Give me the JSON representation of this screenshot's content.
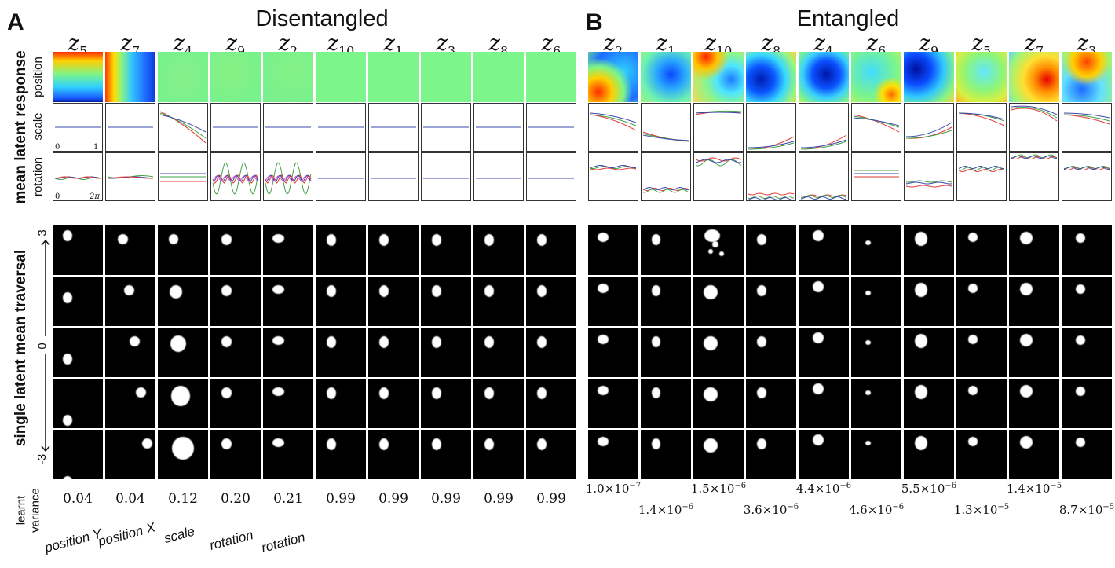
{
  "panels": {
    "A": {
      "letter": "A",
      "title": "Disentangled",
      "latents": [
        {
          "name": "z",
          "sub": "5"
        },
        {
          "name": "z",
          "sub": "7"
        },
        {
          "name": "z",
          "sub": "4"
        },
        {
          "name": "z",
          "sub": "9"
        },
        {
          "name": "z",
          "sub": "2"
        },
        {
          "name": "z",
          "sub": "10"
        },
        {
          "name": "z",
          "sub": "1"
        },
        {
          "name": "z",
          "sub": "3"
        },
        {
          "name": "z",
          "sub": "8"
        },
        {
          "name": "z",
          "sub": "6"
        }
      ],
      "variances": [
        "0.04",
        "0.04",
        "0.12",
        "0.20",
        "0.21",
        "0.99",
        "0.99",
        "0.99",
        "0.99",
        "0.99"
      ],
      "factors": [
        "position Y",
        "position X",
        "scale",
        "rotation",
        "rotation"
      ]
    },
    "B": {
      "letter": "B",
      "title": "Entangled",
      "latents": [
        {
          "name": "z",
          "sub": "2"
        },
        {
          "name": "z",
          "sub": "1"
        },
        {
          "name": "z",
          "sub": "10"
        },
        {
          "name": "z",
          "sub": "8"
        },
        {
          "name": "z",
          "sub": "4"
        },
        {
          "name": "z",
          "sub": "6"
        },
        {
          "name": "z",
          "sub": "9"
        },
        {
          "name": "z",
          "sub": "5"
        },
        {
          "name": "z",
          "sub": "7"
        },
        {
          "name": "z",
          "sub": "3"
        }
      ],
      "variances": [
        "1.0×10",
        "1.4×10",
        "1.5×10",
        "3.6×10",
        "4.4×10",
        "4.6×10",
        "5.5×10",
        "1.3×10",
        "1.4×10",
        "8.7×10"
      ],
      "variance_exps": [
        "−7",
        "−6",
        "−6",
        "−6",
        "−6",
        "−6",
        "−6",
        "−5",
        "−5",
        "−5"
      ]
    }
  },
  "row_labels": {
    "position": "position",
    "scale": "scale",
    "rotation": "rotation"
  },
  "side_labels": {
    "top": "mean latent response",
    "bottom": "single latent mean traversal"
  },
  "axis_ticks": {
    "scale_min": "0",
    "scale_max": "1",
    "rot_min": "0",
    "rot_max": "2π",
    "trav_top": "3",
    "trav_mid": "0",
    "trav_bot": "-3"
  },
  "variance_label": {
    "line1": "learnt",
    "line2": "variance"
  },
  "colors": {
    "red": "#e53935",
    "green": "#43a047",
    "blue": "#3949ab",
    "heat_flat": "#7cf58a"
  }
}
